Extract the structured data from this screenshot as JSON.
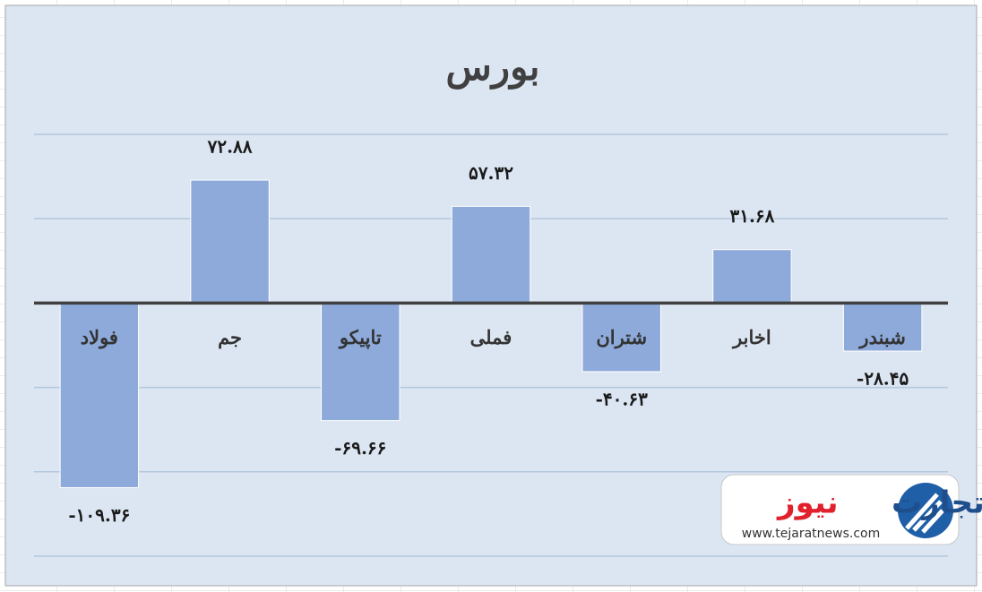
{
  "chart_data": {
    "type": "bar",
    "title": "بورس",
    "categories": [
      "فولاد",
      "جم",
      "تاپیکو",
      "فملی",
      "شتران",
      "اخابر",
      "شبندر"
    ],
    "values": [
      -109.36,
      72.88,
      -69.66,
      57.32,
      -40.63,
      31.68,
      -28.45
    ],
    "value_labels": [
      "-۱۰۹.۳۶",
      "۷۲.۸۸",
      "-۶۹.۶۶",
      "۵۷.۳۲",
      "-۴۰.۶۳",
      "۳۱.۶۸",
      "-۲۸.۴۵"
    ],
    "color": "#8eaadb",
    "ylim": [
      -150,
      100
    ],
    "yticks": [
      -150,
      -100,
      -50,
      0,
      50,
      100
    ],
    "grid": true
  },
  "logo": {
    "brand": [
      "تجارت",
      "نیوز"
    ],
    "url": "www.tejaratnews.com"
  }
}
